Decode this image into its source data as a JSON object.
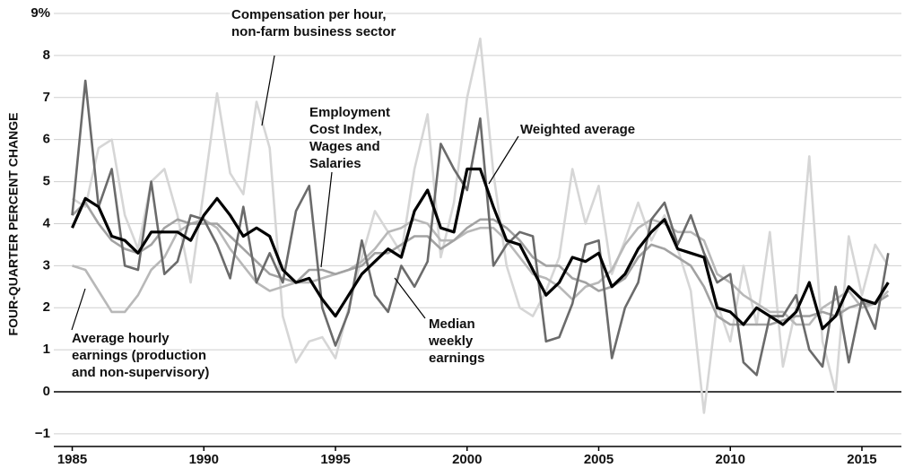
{
  "chart_data": {
    "type": "line",
    "y_label": "FOUR-QUARTER PERCENT CHANGE",
    "x": [
      1985,
      1985.5,
      1986,
      1986.5,
      1987,
      1987.5,
      1988,
      1988.5,
      1989,
      1989.5,
      1990,
      1990.5,
      1991,
      1991.5,
      1992,
      1992.5,
      1993,
      1993.5,
      1994,
      1994.5,
      1995,
      1995.5,
      1996,
      1996.5,
      1997,
      1997.5,
      1998,
      1998.5,
      1999,
      1999.5,
      2000,
      2000.5,
      2001,
      2001.5,
      2002,
      2002.5,
      2003,
      2003.5,
      2004,
      2004.5,
      2005,
      2005.5,
      2006,
      2006.5,
      2007,
      2007.5,
      2008,
      2008.5,
      2009,
      2009.5,
      2010,
      2010.5,
      2011,
      2011.5,
      2012,
      2012.5,
      2013,
      2013.5,
      2014,
      2014.5,
      2015,
      2015.5,
      2016
    ],
    "series": [
      {
        "color": "#d6d6d6",
        "values": [
          4.6,
          4.4,
          5.8,
          6.0,
          4.2,
          3.4,
          5.0,
          5.3,
          4.2,
          2.6,
          4.8,
          7.1,
          5.2,
          4.7,
          6.9,
          5.8,
          1.8,
          0.7,
          1.2,
          1.3,
          0.8,
          2.0,
          3.2,
          4.3,
          3.8,
          3.3,
          5.3,
          6.6,
          3.2,
          4.5,
          7.0,
          8.4,
          5.2,
          3.0,
          2.0,
          1.8,
          2.4,
          3.2,
          5.3,
          4.0,
          4.9,
          2.8,
          3.6,
          4.5,
          3.6,
          4.2,
          3.4,
          2.4,
          -0.5,
          2.1,
          1.2,
          3.0,
          1.6,
          3.8,
          0.6,
          2.0,
          5.6,
          1.2,
          0.0,
          3.7,
          2.3,
          3.5,
          3.0
        ]
      },
      {
        "color": "#b8b8b8",
        "values": [
          3.0,
          2.9,
          2.4,
          1.9,
          1.9,
          2.3,
          2.9,
          3.2,
          3.8,
          4.0,
          4.1,
          3.9,
          3.4,
          3.0,
          2.6,
          2.4,
          2.5,
          2.6,
          2.6,
          2.7,
          2.8,
          2.9,
          3.1,
          3.4,
          3.8,
          3.9,
          4.1,
          4.0,
          3.6,
          3.6,
          3.8,
          3.9,
          3.9,
          3.6,
          3.2,
          2.8,
          2.7,
          2.5,
          2.2,
          2.5,
          2.6,
          2.9,
          3.5,
          3.9,
          4.1,
          4.0,
          3.8,
          3.8,
          3.6,
          2.8,
          2.6,
          2.3,
          2.1,
          1.9,
          1.9,
          1.6,
          1.6,
          2.0,
          2.2,
          2.4,
          2.0,
          2.1,
          2.4
        ]
      },
      {
        "color": "#a2a2a2",
        "values": [
          4.2,
          4.5,
          4.0,
          3.6,
          3.4,
          3.3,
          3.5,
          3.9,
          4.1,
          4.0,
          4.0,
          4.0,
          3.7,
          3.4,
          3.1,
          2.8,
          2.7,
          2.6,
          2.9,
          2.9,
          2.8,
          2.9,
          3.0,
          3.3,
          3.3,
          3.5,
          3.7,
          3.7,
          3.4,
          3.6,
          3.9,
          4.1,
          4.1,
          3.9,
          3.6,
          3.2,
          3.0,
          3.0,
          2.7,
          2.6,
          2.4,
          2.5,
          2.7,
          3.2,
          3.5,
          3.4,
          3.2,
          3.0,
          2.5,
          1.8,
          1.6,
          1.6,
          1.6,
          1.6,
          1.7,
          1.8,
          1.8,
          1.9,
          1.8,
          2.0,
          2.1,
          2.1,
          2.3
        ]
      },
      {
        "color": "#6b6b6b",
        "values": [
          4.2,
          7.4,
          4.4,
          5.3,
          3.0,
          2.9,
          5.0,
          2.8,
          3.1,
          4.2,
          4.1,
          3.5,
          2.7,
          4.4,
          2.6,
          3.3,
          2.6,
          4.3,
          4.9,
          2.0,
          1.1,
          1.9,
          3.6,
          2.3,
          1.9,
          3.0,
          2.5,
          3.1,
          5.9,
          5.3,
          4.8,
          6.5,
          3.0,
          3.5,
          3.8,
          3.7,
          1.2,
          1.3,
          2.1,
          3.5,
          3.6,
          0.8,
          2.0,
          2.6,
          4.1,
          4.5,
          3.5,
          4.2,
          3.3,
          2.6,
          2.8,
          0.7,
          0.4,
          1.8,
          1.8,
          2.3,
          1.0,
          0.6,
          2.5,
          0.7,
          2.2,
          1.5,
          3.3
        ]
      },
      {
        "color": "#000000",
        "values": [
          3.9,
          4.6,
          4.4,
          3.7,
          3.6,
          3.3,
          3.8,
          3.8,
          3.8,
          3.6,
          4.2,
          4.6,
          4.2,
          3.7,
          3.9,
          3.7,
          2.9,
          2.6,
          2.7,
          2.2,
          1.8,
          2.3,
          2.8,
          3.1,
          3.4,
          3.2,
          4.3,
          4.8,
          3.9,
          3.8,
          5.3,
          5.3,
          4.4,
          3.6,
          3.5,
          2.9,
          2.3,
          2.6,
          3.2,
          3.1,
          3.3,
          2.5,
          2.8,
          3.4,
          3.8,
          4.1,
          3.4,
          3.3,
          3.2,
          2.0,
          1.9,
          1.6,
          2.0,
          1.8,
          1.6,
          1.9,
          2.6,
          1.5,
          1.8,
          2.5,
          2.2,
          2.1,
          2.6
        ]
      }
    ],
    "annotations": [
      {
        "lines": [
          "Compensation per hour,",
          "non-farm business sector"
        ]
      },
      {
        "lines": [
          "Employment",
          "Cost Index,",
          "Wages and",
          "Salaries"
        ]
      },
      {
        "lines": [
          "Weighted average"
        ]
      },
      {
        "lines": [
          "Median",
          "weekly",
          "earnings"
        ]
      },
      {
        "lines": [
          "Average hourly",
          "earnings (production",
          "and non-supervisory)"
        ]
      }
    ],
    "xlim": [
      1984.3,
      2016.5
    ],
    "xticks": [
      1985,
      1990,
      1995,
      2000,
      2005,
      2010,
      2015
    ],
    "ylim": [
      -1.3,
      9
    ],
    "yticks": [
      {
        "value": -1,
        "label": "−1"
      },
      0,
      1,
      2,
      3,
      4,
      5,
      6,
      7,
      8,
      {
        "value": 9,
        "label": "9%"
      }
    ],
    "grid": true
  }
}
